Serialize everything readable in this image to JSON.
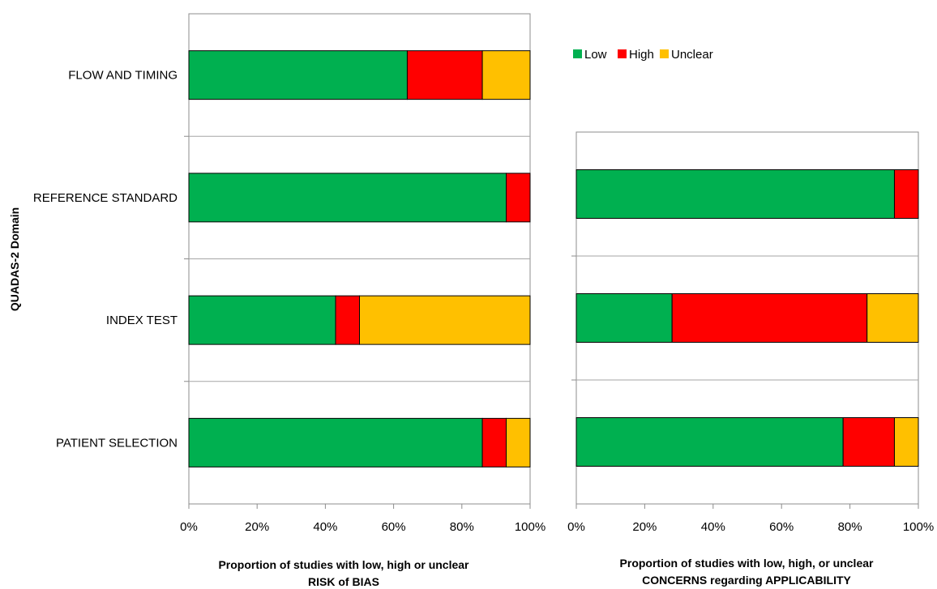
{
  "chart_data": [
    {
      "type": "bar",
      "orientation": "horizontal",
      "stacked": true,
      "categories": [
        "FLOW AND TIMING",
        "REFERENCE STANDARD",
        "INDEX TEST",
        "PATIENT SELECTION"
      ],
      "series": [
        {
          "name": "Low",
          "color": "#00B050",
          "values": [
            64,
            93,
            43,
            86
          ]
        },
        {
          "name": "High",
          "color": "#FF0000",
          "values": [
            22,
            7,
            7,
            7
          ]
        },
        {
          "name": "Unclear",
          "color": "#FFC000",
          "values": [
            14,
            0,
            50,
            7
          ]
        }
      ],
      "xticks": [
        "0%",
        "20%",
        "40%",
        "60%",
        "80%",
        "100%"
      ],
      "xlim": [
        0,
        100
      ],
      "ylabel": "QUADAS-2 Domain",
      "xlabel_line1": "Proportion of studies with low, high or unclear",
      "xlabel_line2": "RISK of BIAS"
    },
    {
      "type": "bar",
      "orientation": "horizontal",
      "stacked": true,
      "categories": [
        "REFERENCE STANDARD",
        "INDEX TEST",
        "PATIENT SELECTION"
      ],
      "series": [
        {
          "name": "Low",
          "color": "#00B050",
          "values": [
            93,
            28,
            78
          ]
        },
        {
          "name": "High",
          "color": "#FF0000",
          "values": [
            7,
            57,
            15
          ]
        },
        {
          "name": "Unclear",
          "color": "#FFC000",
          "values": [
            0,
            15,
            7
          ]
        }
      ],
      "xticks": [
        "0%",
        "20%",
        "40%",
        "60%",
        "80%",
        "100%"
      ],
      "xlim": [
        0,
        100
      ],
      "xlabel_line1": "Proportion of studies with low, high, or unclear",
      "xlabel_line2": "CONCERNS regarding APPLICABILITY"
    }
  ],
  "legend": [
    {
      "name": "Low",
      "color": "#00B050"
    },
    {
      "name": "High",
      "color": "#FF0000"
    },
    {
      "name": "Unclear",
      "color": "#FFC000"
    }
  ]
}
